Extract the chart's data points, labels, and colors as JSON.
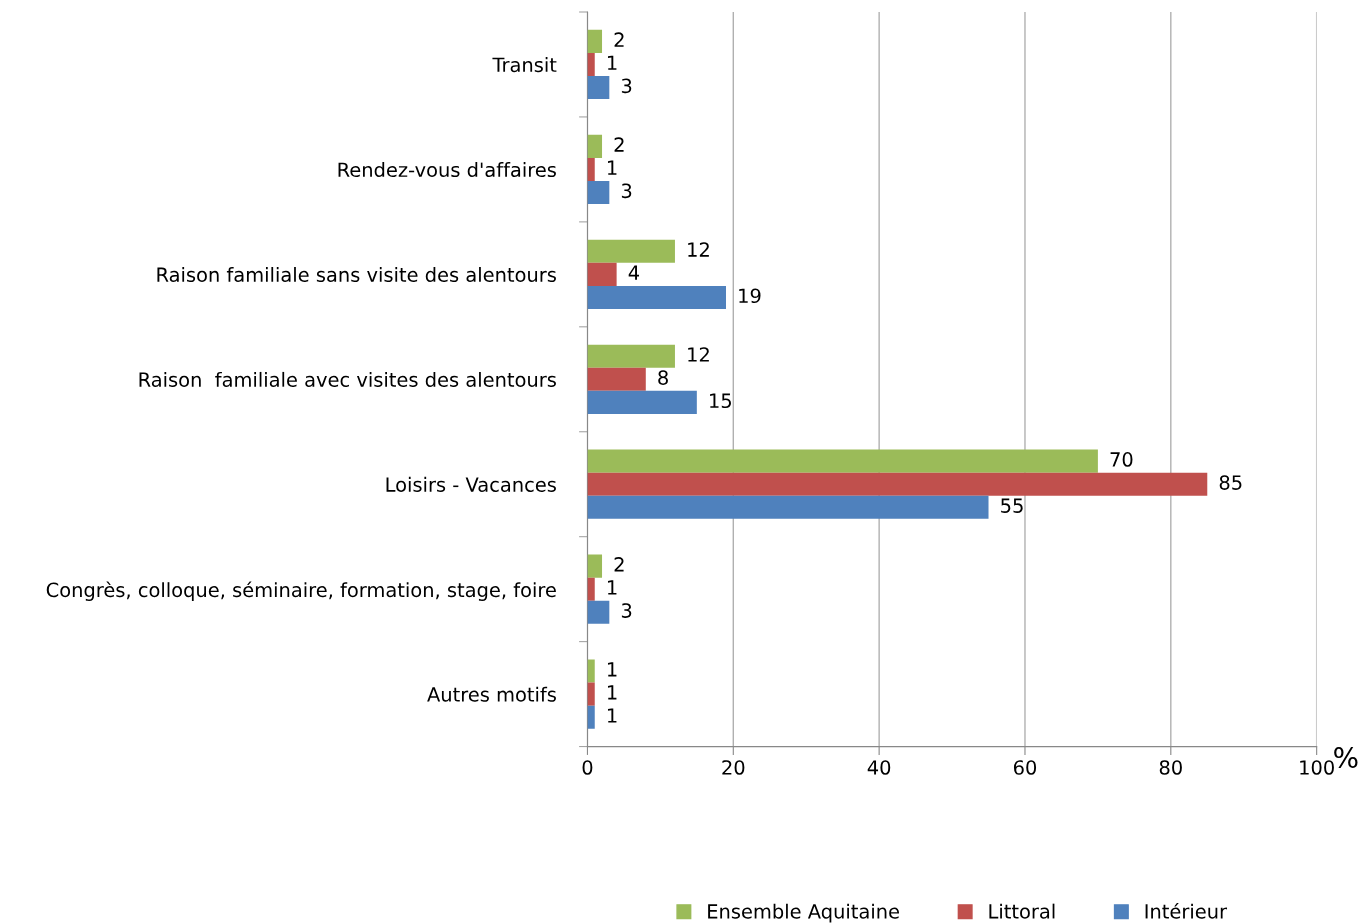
{
  "chart_data": {
    "type": "bar",
    "orientation": "horizontal",
    "categories": [
      "Transit",
      "Rendez-vous d'affaires",
      "Raison familiale sans visite des alentours",
      "Raison  familiale avec visites des alentours",
      "Loisirs - Vacances",
      "Congrès, colloque, séminaire, formation, stage, foire",
      "Autres motifs"
    ],
    "series": [
      {
        "name": "Ensemble Aquitaine",
        "color": "#9bbb59",
        "values": [
          2,
          2,
          12,
          12,
          70,
          2,
          1
        ]
      },
      {
        "name": "Littoral",
        "color": "#c0504d",
        "values": [
          1,
          1,
          4,
          8,
          85,
          1,
          1
        ]
      },
      {
        "name": "Intérieur",
        "color": "#4f81bd",
        "values": [
          3,
          3,
          19,
          15,
          55,
          3,
          1
        ]
      }
    ],
    "xlabel": "%",
    "xlim": [
      0,
      100
    ],
    "xticks": [
      0,
      20,
      40,
      60,
      80,
      100
    ],
    "grid": "x",
    "legend": "bottom",
    "data_labels": true
  }
}
